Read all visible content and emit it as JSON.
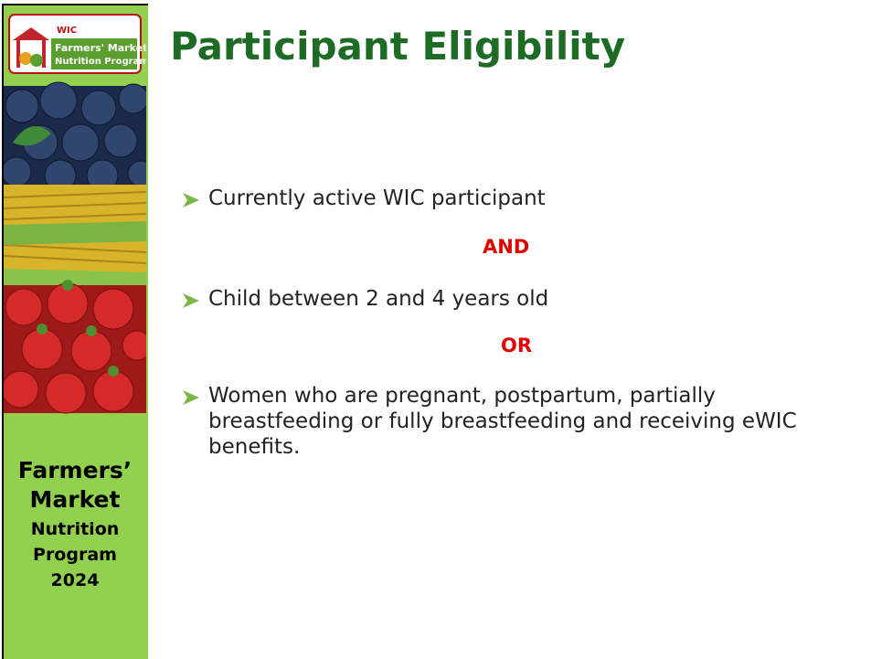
{
  "title": "Participant Eligibility",
  "sidebar": {
    "logo": [
      "WIC",
      "Farmers' Market",
      "Nutrition Program"
    ],
    "footer": [
      "Farmers’",
      "Market",
      "Nutrition",
      "Program",
      "2024"
    ]
  },
  "bullets": [
    "Currently active WIC participant",
    "Child between 2 and 4 years old",
    "Women who are pregnant, postpartum, partially breastfeeding or fully breastfeeding and receiving eWIC benefits."
  ],
  "connectors": [
    "AND",
    "OR"
  ]
}
